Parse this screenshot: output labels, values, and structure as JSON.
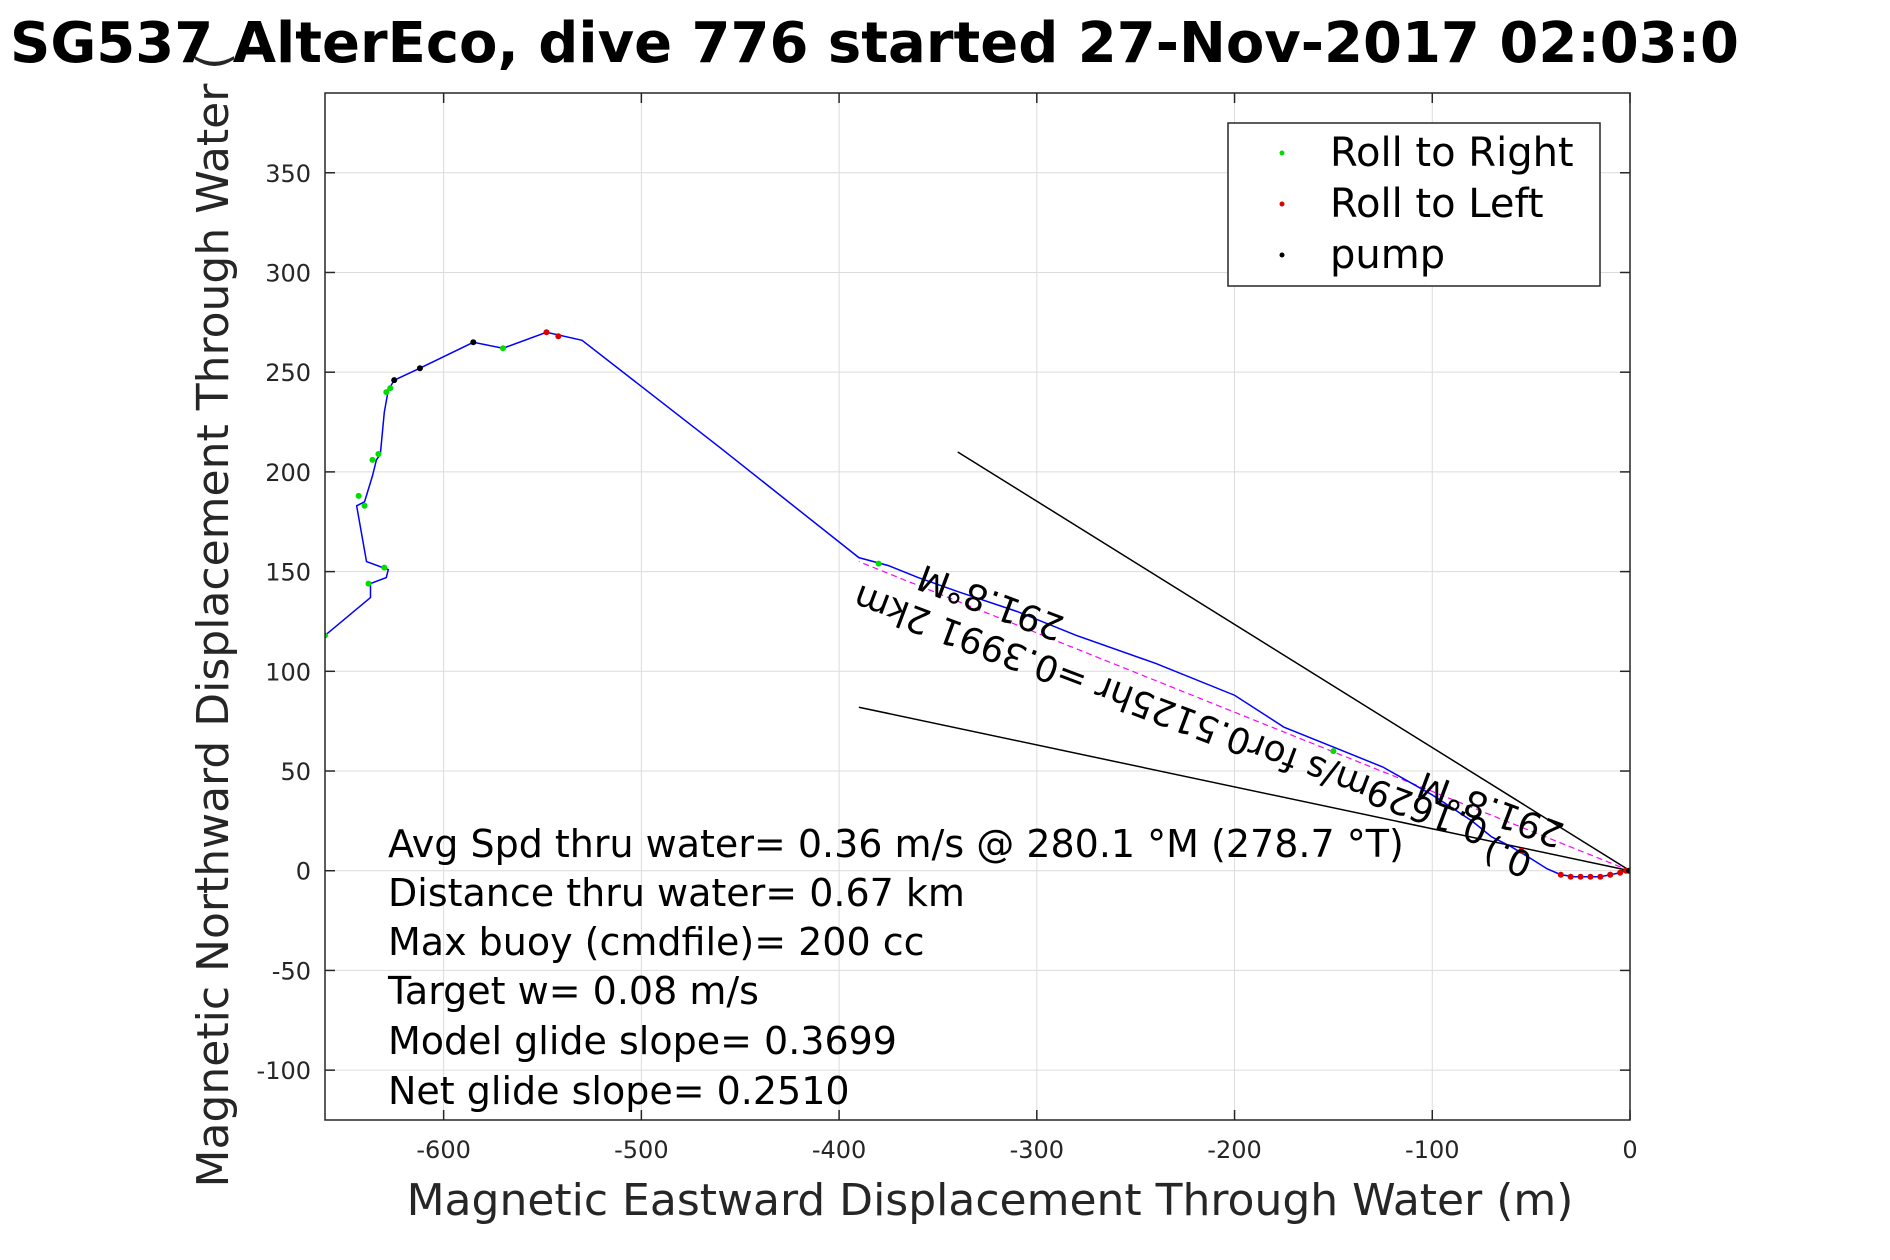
{
  "chart_data": {
    "type": "line",
    "title": "SG537 AlterEco, dive 776 started 27-Nov-2017 02:03:0",
    "xlabel": "Magnetic Eastward Displacement Through Water (m)",
    "ylabel": "Magnetic Northward Displacement Through Water (",
    "xlim": [
      -660,
      0
    ],
    "ylim": [
      -125,
      390
    ],
    "xticks": [
      -600,
      -500,
      -400,
      -300,
      -200,
      -100,
      0
    ],
    "yticks": [
      -100,
      -50,
      0,
      50,
      100,
      150,
      200,
      250,
      300,
      350
    ],
    "grid": true,
    "legend_position": "top-right",
    "legend": [
      {
        "label": "Roll to Right",
        "color": "#00dd00"
      },
      {
        "label": "Roll to Left",
        "color": "#dd0000"
      },
      {
        "label": "pump",
        "color": "#000000"
      }
    ],
    "track": {
      "color": "#0000ff",
      "x": [
        0,
        -2,
        -5,
        -10,
        -15,
        -22,
        -28,
        -35,
        -42,
        -50,
        -60,
        -70,
        -80,
        -100,
        -125,
        -150,
        -175,
        -200,
        -240,
        -280,
        -310,
        -340,
        -360,
        -375,
        -390,
        -460,
        -530,
        -548,
        -570,
        -585,
        -612,
        -625,
        -628,
        -630,
        -632,
        -634,
        -636,
        -640,
        -644,
        -639,
        -628,
        -629,
        -637,
        -637,
        -660
      ],
      "y": [
        0,
        0,
        -1,
        -2,
        -3,
        -3,
        -3,
        -2,
        1,
        6,
        12,
        17,
        25,
        38,
        52,
        62,
        72,
        88,
        104,
        118,
        130,
        140,
        147,
        153,
        157,
        212,
        266,
        270,
        262,
        265,
        252,
        246,
        241,
        230,
        209,
        206,
        198,
        185,
        183,
        155,
        151,
        147,
        144,
        137,
        118
      ]
    },
    "reference_line": {
      "color": "#ff00ff",
      "x": [
        0,
        -390
      ],
      "y": [
        0,
        155
      ]
    },
    "points": {
      "roll_right": {
        "color": "#00dd00",
        "x": [
          -660,
          -638,
          -630,
          -640,
          -643,
          -636,
          -633,
          -629,
          -627,
          -570,
          -380,
          -150,
          -10
        ],
        "y": [
          118,
          144,
          152,
          183,
          188,
          206,
          209,
          240,
          242,
          262,
          154,
          60,
          -2
        ]
      },
      "roll_left": {
        "color": "#dd0000",
        "x": [
          -542,
          -548,
          -35,
          -30,
          -25,
          -20,
          -15,
          -10,
          -5,
          -2,
          -55
        ],
        "y": [
          268,
          270,
          -2,
          -3,
          -3,
          -3,
          -3,
          -2,
          -1,
          0,
          10
        ]
      },
      "pump": {
        "color": "#000000",
        "x": [
          -585,
          -612,
          -625,
          -0.5
        ],
        "y": [
          265,
          252,
          246,
          0
        ]
      }
    },
    "current_lines": {
      "color": "#000000",
      "lines": [
        {
          "x": [
            0,
            -340
          ],
          "y": [
            0,
            210
          ]
        },
        {
          "x": [
            0,
            -390
          ],
          "y": [
            0,
            82
          ]
        }
      ]
    },
    "track_labels": {
      "heading_far": "291.8°M",
      "heading_near": "291.8°M",
      "leg_summary": "0.1629m/s for0.5125hr =0.3991 2km",
      "extra_text": "0.)"
    },
    "stats": [
      "Avg Spd thru water=  0.36 m/s @ 280.1 °M (278.7 °T)",
      "Distance thru water=  0.67 km",
      "Max buoy (cmdfile)= 200 cc",
      "Target w= 0.08 m/s",
      "Model glide slope= 0.3699",
      "Net glide slope= 0.2510"
    ]
  }
}
